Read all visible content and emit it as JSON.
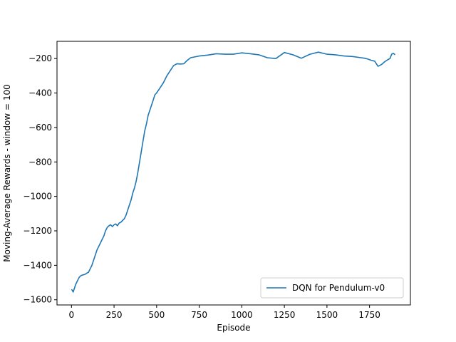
{
  "chart_data": {
    "type": "line",
    "title": "",
    "xlabel": "Episode",
    "ylabel": "Moving-Average Rewards - window = 100",
    "xlim": [
      -85,
      1990
    ],
    "ylim": [
      -1630,
      -100
    ],
    "x_ticks": [
      0,
      250,
      500,
      750,
      1000,
      1250,
      1500,
      1750
    ],
    "y_ticks": [
      -1600,
      -1400,
      -1200,
      -1000,
      -800,
      -600,
      -400,
      -200
    ],
    "grid": false,
    "legend_position": "lower right",
    "series": [
      {
        "name": "DQN for Pendulum-v0",
        "color": "#1f77b4",
        "x": [
          0,
          5,
          10,
          15,
          20,
          25,
          30,
          35,
          40,
          45,
          50,
          55,
          60,
          70,
          80,
          90,
          100,
          110,
          120,
          130,
          140,
          150,
          160,
          170,
          180,
          190,
          200,
          210,
          220,
          230,
          240,
          250,
          260,
          270,
          280,
          290,
          300,
          310,
          320,
          330,
          340,
          350,
          360,
          370,
          380,
          390,
          400,
          410,
          420,
          430,
          440,
          450,
          460,
          470,
          480,
          490,
          500,
          520,
          540,
          560,
          580,
          600,
          620,
          640,
          660,
          680,
          700,
          750,
          800,
          850,
          900,
          950,
          1000,
          1050,
          1100,
          1150,
          1200,
          1250,
          1300,
          1350,
          1400,
          1450,
          1500,
          1550,
          1600,
          1650,
          1700,
          1720,
          1740,
          1760,
          1780,
          1800,
          1820,
          1840,
          1860,
          1870,
          1880,
          1890,
          1900
        ],
        "y": [
          -1540,
          -1545,
          -1555,
          -1540,
          -1525,
          -1510,
          -1500,
          -1490,
          -1480,
          -1470,
          -1465,
          -1460,
          -1458,
          -1455,
          -1452,
          -1445,
          -1440,
          -1420,
          -1400,
          -1370,
          -1340,
          -1310,
          -1290,
          -1270,
          -1250,
          -1230,
          -1200,
          -1180,
          -1170,
          -1165,
          -1175,
          -1165,
          -1160,
          -1170,
          -1155,
          -1150,
          -1140,
          -1130,
          -1110,
          -1080,
          -1050,
          -1020,
          -980,
          -950,
          -910,
          -860,
          -800,
          -740,
          -680,
          -620,
          -580,
          -530,
          -500,
          -470,
          -440,
          -410,
          -400,
          -370,
          -340,
          -300,
          -270,
          -240,
          -230,
          -232,
          -230,
          -210,
          -195,
          -185,
          -180,
          -172,
          -175,
          -175,
          -167,
          -172,
          -178,
          -195,
          -200,
          -165,
          -178,
          -198,
          -175,
          -163,
          -175,
          -178,
          -185,
          -188,
          -195,
          -198,
          -203,
          -210,
          -215,
          -245,
          -235,
          -218,
          -205,
          -200,
          -175,
          -170,
          -178
        ]
      }
    ]
  }
}
